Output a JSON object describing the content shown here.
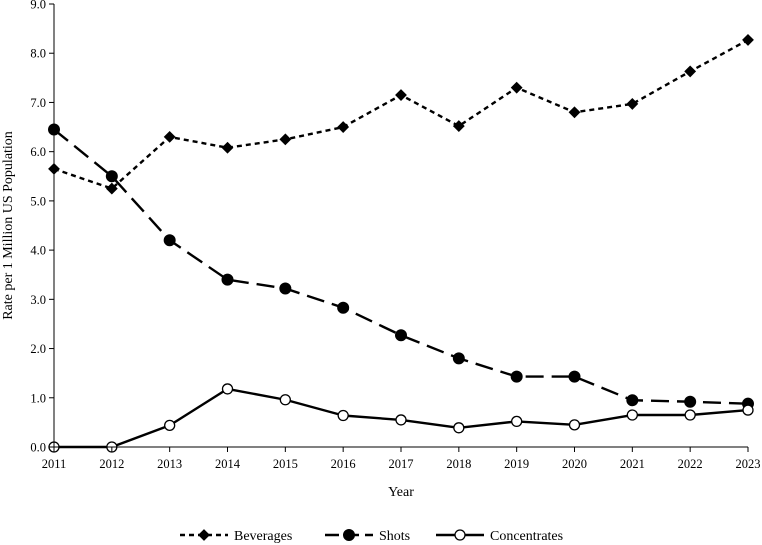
{
  "chart_data": {
    "type": "line",
    "title": "",
    "xlabel": "Year",
    "ylabel": "Rate per 1 Million US Population",
    "x": [
      2011,
      2012,
      2013,
      2014,
      2015,
      2016,
      2017,
      2018,
      2019,
      2020,
      2021,
      2022,
      2023
    ],
    "ylim": [
      0,
      9
    ],
    "y_ticks": [
      "0.0",
      "1.0",
      "2.0",
      "3.0",
      "4.0",
      "5.0",
      "6.0",
      "7.0",
      "8.0",
      "9.0"
    ],
    "grid": false,
    "legend_position": "bottom",
    "series": [
      {
        "name": "Beverages",
        "marker": "diamond",
        "line_style": "short-dash",
        "color": "#000000",
        "values": [
          5.65,
          5.25,
          6.3,
          6.08,
          6.25,
          6.5,
          7.15,
          6.52,
          7.3,
          6.8,
          6.97,
          7.63,
          8.27
        ]
      },
      {
        "name": "Shots",
        "marker": "filled-circle",
        "line_style": "long-dash",
        "color": "#000000",
        "values": [
          6.45,
          5.5,
          4.2,
          3.4,
          3.22,
          2.83,
          2.27,
          1.8,
          1.43,
          1.43,
          0.95,
          0.92,
          0.88
        ]
      },
      {
        "name": "Concentrates",
        "marker": "open-circle",
        "line_style": "solid",
        "color": "#000000",
        "values": [
          0.0,
          0.0,
          0.44,
          1.18,
          0.96,
          0.64,
          0.55,
          0.39,
          0.52,
          0.45,
          0.65,
          0.65,
          0.75
        ]
      }
    ]
  }
}
